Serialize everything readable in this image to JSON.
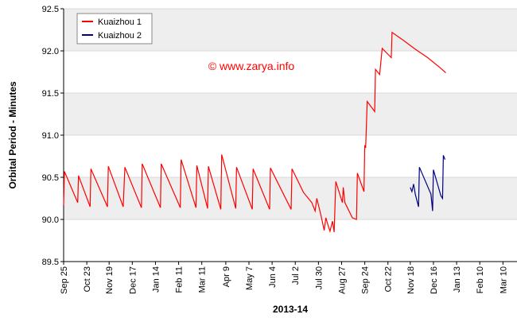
{
  "chart_data": {
    "type": "line",
    "annotation": "© www.zarya.info",
    "xlabel": "2013-14",
    "ylabel": "Orbital Period - Minutes",
    "xlim": [
      0,
      548
    ],
    "ylim": [
      89.5,
      92.5
    ],
    "yticks": [
      89.5,
      {
        "value": 90,
        "label": "90.0"
      },
      90.5,
      {
        "value": 91,
        "label": "91.0"
      },
      91.5,
      {
        "value": 92,
        "label": "92.0"
      },
      92.5
    ],
    "xticks": [
      {
        "value": 0,
        "label": "Sep 25"
      },
      {
        "value": 28,
        "label": "Oct 23"
      },
      {
        "value": 55,
        "label": "Nov 19"
      },
      {
        "value": 83,
        "label": "Dec 17"
      },
      {
        "value": 111,
        "label": "Jan 14"
      },
      {
        "value": 139,
        "label": "Feb 11"
      },
      {
        "value": 167,
        "label": "Mar 11"
      },
      {
        "value": 196,
        "label": "Apr 9"
      },
      {
        "value": 224,
        "label": "May 7"
      },
      {
        "value": 252,
        "label": "Jun 4"
      },
      {
        "value": 280,
        "label": "Jul 2"
      },
      {
        "value": 308,
        "label": "Jul 30"
      },
      {
        "value": 336,
        "label": "Aug 27"
      },
      {
        "value": 364,
        "label": "Sep 24"
      },
      {
        "value": 392,
        "label": "Oct 22"
      },
      {
        "value": 419,
        "label": "Nov 18"
      },
      {
        "value": 447,
        "label": "Dec 16"
      },
      {
        "value": 475,
        "label": "Jan 13"
      },
      {
        "value": 503,
        "label": "Feb 10"
      },
      {
        "value": 531,
        "label": "Mar 10"
      }
    ],
    "series": [
      {
        "name": "Kuaizhou 1",
        "color": "#ff0000",
        "x": [
          0,
          1,
          17,
          18,
          32,
          33,
          53,
          54,
          72,
          74,
          94,
          95,
          117,
          118,
          141,
          142,
          160,
          161,
          174,
          175,
          190,
          191,
          208,
          209,
          228,
          229,
          249,
          250,
          275,
          276,
          290,
          300,
          304,
          306,
          311,
          315,
          317,
          320,
          322,
          325,
          327,
          329,
          337,
          338,
          340,
          349,
          354,
          355,
          363,
          364,
          365,
          367,
          376,
          377,
          382,
          385,
          396,
          397,
          410,
          425,
          440,
          455,
          462
        ],
        "values": [
          90.17,
          90.57,
          90.2,
          90.52,
          90.15,
          90.6,
          90.15,
          90.63,
          90.15,
          90.62,
          90.14,
          90.66,
          90.14,
          90.66,
          90.14,
          90.71,
          90.14,
          90.64,
          90.13,
          90.63,
          90.12,
          90.77,
          90.13,
          90.62,
          90.12,
          90.6,
          90.12,
          90.61,
          90.12,
          90.6,
          90.32,
          90.2,
          90.1,
          90.25,
          90.05,
          89.87,
          90.02,
          89.92,
          89.86,
          89.98,
          89.85,
          90.45,
          90.2,
          90.38,
          90.2,
          90.02,
          90.0,
          90.55,
          90.33,
          90.88,
          90.85,
          91.4,
          91.28,
          91.78,
          91.72,
          92.03,
          91.92,
          92.22,
          92.13,
          92.02,
          91.92,
          91.8,
          91.74
        ]
      },
      {
        "name": "Kuaizhou 2",
        "color": "#000080",
        "x": [
          419,
          421,
          423,
          425,
          429,
          430,
          444,
          446,
          447,
          456,
          458,
          459,
          461
        ],
        "values": [
          90.38,
          90.33,
          90.42,
          90.3,
          90.15,
          90.62,
          90.3,
          90.1,
          90.59,
          90.28,
          90.25,
          90.76,
          90.71
        ]
      }
    ]
  }
}
